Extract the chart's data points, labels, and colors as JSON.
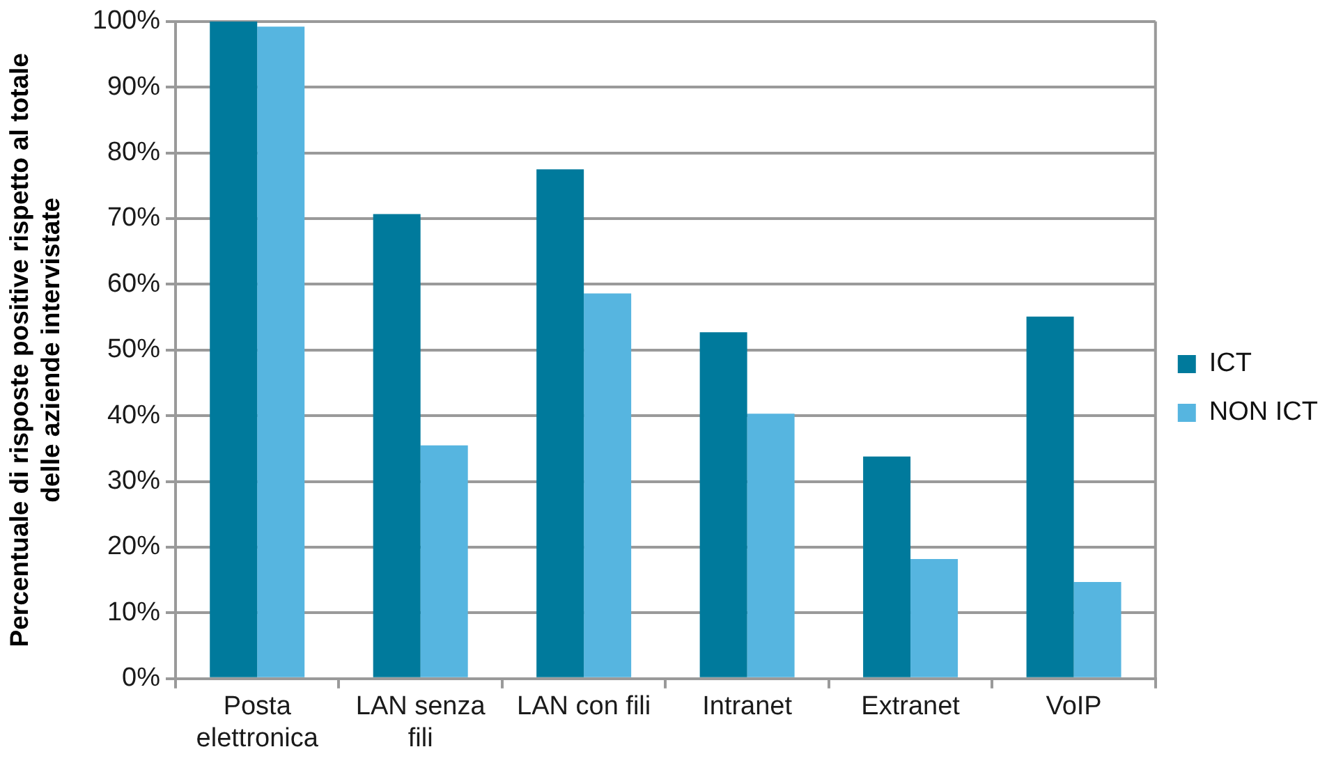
{
  "chart_data": {
    "type": "bar",
    "ylabel": "Percentuale di risposte positive rispetto al totale delle aziende intervistate",
    "categories": [
      "Posta elettronica",
      "LAN senza fili",
      "LAN con fili",
      "Intranet",
      "Extranet",
      "VoIP"
    ],
    "series": [
      {
        "name": "ICT",
        "color": "#007a9c",
        "values": [
          100,
          70.7,
          77.5,
          52.7,
          33.8,
          55.1
        ]
      },
      {
        "name": "NON ICT",
        "color": "#56b5e0",
        "values": [
          99.2,
          35.5,
          58.6,
          40.3,
          18.2,
          14.7
        ]
      }
    ],
    "ylim": [
      0,
      100
    ],
    "yticks": [
      {
        "value": 0,
        "label": "0%"
      },
      {
        "value": 10,
        "label": "10%"
      },
      {
        "value": 20,
        "label": "20%"
      },
      {
        "value": 30,
        "label": "30%"
      },
      {
        "value": 40,
        "label": "40%"
      },
      {
        "value": 50,
        "label": "50%"
      },
      {
        "value": 60,
        "label": "60%"
      },
      {
        "value": 70,
        "label": "70%"
      },
      {
        "value": 80,
        "label": "80%"
      },
      {
        "value": 90,
        "label": "90%"
      },
      {
        "value": 100,
        "label": "100%"
      }
    ],
    "grid": "y",
    "legend": "right"
  }
}
